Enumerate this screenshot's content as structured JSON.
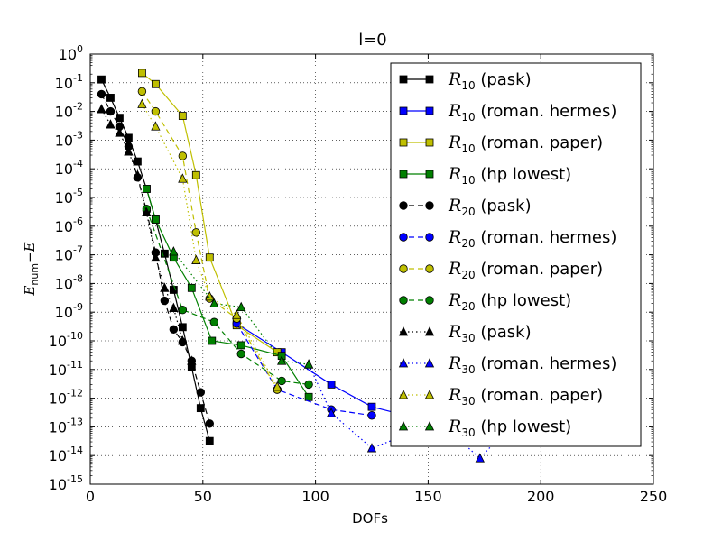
{
  "chart_data": {
    "type": "line",
    "title": "l=0",
    "xlabel": "DOFs",
    "ylabel": {
      "base": "E",
      "sub": "num",
      "tail": "−E"
    },
    "xlim": [
      0,
      250
    ],
    "ylim_exponent": [
      -15,
      0
    ],
    "yscale": "log",
    "grid": true,
    "legend_position": "top-right",
    "x_ticks": [
      "0",
      "50",
      "100",
      "150",
      "200",
      "250"
    ],
    "y_ticks": [
      {
        "base": "10",
        "exp": "0"
      },
      {
        "base": "10",
        "exp": "-1"
      },
      {
        "base": "10",
        "exp": "-2"
      },
      {
        "base": "10",
        "exp": "-3"
      },
      {
        "base": "10",
        "exp": "-4"
      },
      {
        "base": "10",
        "exp": "-5"
      },
      {
        "base": "10",
        "exp": "-6"
      },
      {
        "base": "10",
        "exp": "-7"
      },
      {
        "base": "10",
        "exp": "-8"
      },
      {
        "base": "10",
        "exp": "-9"
      },
      {
        "base": "10",
        "exp": "-10"
      },
      {
        "base": "10",
        "exp": "-11"
      },
      {
        "base": "10",
        "exp": "-12"
      },
      {
        "base": "10",
        "exp": "-13"
      },
      {
        "base": "10",
        "exp": "-14"
      },
      {
        "base": "10",
        "exp": "-15"
      }
    ],
    "series": [
      {
        "var": "R",
        "sub": "10",
        "label": " (pask)",
        "color": "#000000",
        "marker": "square",
        "dash": "solid",
        "x": [
          5,
          9,
          13,
          17,
          21,
          25,
          29,
          33,
          37,
          41,
          45,
          49,
          53
        ],
        "y": [
          0.13,
          0.03,
          0.006,
          0.0012,
          0.00018,
          2e-05,
          1.7e-06,
          1.1e-07,
          6e-09,
          3e-10,
          1.2e-11,
          4.5e-13,
          3.2e-14
        ]
      },
      {
        "var": "R",
        "sub": "10",
        "label": " (roman. hermes)",
        "color": "#0000ff",
        "marker": "square",
        "dash": "solid",
        "x": [
          65,
          85,
          107,
          125,
          145
        ],
        "y": [
          4e-10,
          4e-11,
          3e-12,
          5e-13,
          2e-13
        ]
      },
      {
        "var": "R",
        "sub": "10",
        "label": " (roman. paper)",
        "color": "#bfbf00",
        "marker": "square",
        "dash": "solid",
        "x": [
          23,
          29,
          41,
          47,
          53,
          65,
          83
        ],
        "y": [
          0.22,
          0.09,
          0.007,
          6e-05,
          8e-08,
          3.5e-10,
          4e-11
        ]
      },
      {
        "var": "R",
        "sub": "10",
        "label": " (hp lowest)",
        "color": "#008000",
        "marker": "square",
        "dash": "solid",
        "x": [
          25,
          29,
          37,
          45,
          54,
          67,
          85,
          97
        ],
        "y": [
          2e-05,
          1.7e-06,
          8e-08,
          7e-09,
          1e-10,
          7e-11,
          3e-11,
          1.1e-12
        ]
      },
      {
        "var": "R",
        "sub": "20",
        "label": " (pask)",
        "color": "#000000",
        "marker": "circle",
        "dash": "dashed",
        "x": [
          5,
          9,
          13,
          17,
          21,
          25,
          29,
          33,
          37,
          41,
          45,
          49,
          53
        ],
        "y": [
          0.04,
          0.01,
          0.003,
          0.0006,
          5e-05,
          3.5e-06,
          1.2e-07,
          2.5e-09,
          2.5e-10,
          9e-11,
          2e-11,
          1.6e-12,
          1.3e-13
        ]
      },
      {
        "var": "R",
        "sub": "20",
        "label": " (roman. hermes)",
        "color": "#0000ff",
        "marker": "circle",
        "dash": "dashed",
        "x": [
          65,
          83,
          107,
          125
        ],
        "y": [
          4e-10,
          2e-12,
          4e-13,
          2.5e-13
        ]
      },
      {
        "var": "R",
        "sub": "20",
        "label": " (roman. paper)",
        "color": "#bfbf00",
        "marker": "circle",
        "dash": "dashed",
        "x": [
          23,
          29,
          41,
          47,
          53,
          65,
          83
        ],
        "y": [
          0.05,
          0.01,
          0.00028,
          6e-07,
          3e-09,
          6e-10,
          2e-12
        ]
      },
      {
        "var": "R",
        "sub": "20",
        "label": " (hp lowest)",
        "color": "#008000",
        "marker": "circle",
        "dash": "dashed",
        "x": [
          25,
          41,
          55,
          67,
          85,
          97
        ],
        "y": [
          4e-06,
          1.2e-09,
          4.5e-10,
          3.5e-11,
          4e-12,
          3e-12
        ]
      },
      {
        "var": "R",
        "sub": "30",
        "label": " (pask)",
        "color": "#000000",
        "marker": "triangle",
        "dash": "dotted",
        "x": [
          5,
          9,
          13,
          17,
          21,
          25,
          29,
          33,
          37,
          41,
          45
        ],
        "y": [
          0.012,
          0.0035,
          0.0018,
          0.0004,
          6e-05,
          3e-06,
          8e-08,
          7e-09,
          1.4e-09,
          1e-10,
          2e-11
        ]
      },
      {
        "var": "R",
        "sub": "30",
        "label": " (roman. hermes)",
        "color": "#0000ff",
        "marker": "triangle",
        "dash": "dotted",
        "x": [
          97,
          107,
          125,
          155,
          173,
          195
        ],
        "y": [
          1.5e-11,
          3e-13,
          1.8e-14,
          1.5e-13,
          8e-15,
          6e-13
        ]
      },
      {
        "var": "R",
        "sub": "30",
        "label": " (roman. paper)",
        "color": "#bfbf00",
        "marker": "triangle",
        "dash": "dotted",
        "x": [
          23,
          29,
          41,
          47,
          53,
          65,
          83
        ],
        "y": [
          0.018,
          0.003,
          4.5e-05,
          6.5e-08,
          3.5e-09,
          8e-10,
          2.5e-12
        ]
      },
      {
        "var": "R",
        "sub": "30",
        "label": " (hp lowest)",
        "color": "#008000",
        "marker": "triangle",
        "dash": "dotted",
        "x": [
          37,
          55,
          67,
          85,
          97
        ],
        "y": [
          1.3e-07,
          2e-09,
          1.5e-09,
          2e-11,
          1.5e-11
        ]
      }
    ]
  }
}
